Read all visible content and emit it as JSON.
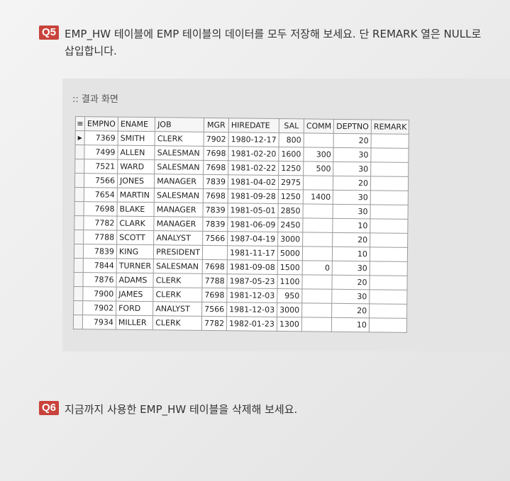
{
  "q5": {
    "badge": "Q5",
    "line1": "EMP_HW 테이블에 EMP 테이블의 데이터를 모두 저장해 보세요. 단 REMARK 열은 NULL로",
    "line2": "삽입합니다."
  },
  "result": {
    "label": ":: 결과 화면",
    "columns": [
      "EMPNO",
      "ENAME",
      "JOB",
      "MGR",
      "HIREDATE",
      "SAL",
      "COMM",
      "DEPTNO",
      "REMARK"
    ],
    "rows": [
      [
        "7369",
        "SMITH",
        "CLERK",
        "7902",
        "1980-12-17",
        "800",
        "",
        "20",
        ""
      ],
      [
        "7499",
        "ALLEN",
        "SALESMAN",
        "7698",
        "1981-02-20",
        "1600",
        "300",
        "30",
        ""
      ],
      [
        "7521",
        "WARD",
        "SALESMAN",
        "7698",
        "1981-02-22",
        "1250",
        "500",
        "30",
        ""
      ],
      [
        "7566",
        "JONES",
        "MANAGER",
        "7839",
        "1981-04-02",
        "2975",
        "",
        "20",
        ""
      ],
      [
        "7654",
        "MARTIN",
        "SALESMAN",
        "7698",
        "1981-09-28",
        "1250",
        "1400",
        "30",
        ""
      ],
      [
        "7698",
        "BLAKE",
        "MANAGER",
        "7839",
        "1981-05-01",
        "2850",
        "",
        "30",
        ""
      ],
      [
        "7782",
        "CLARK",
        "MANAGER",
        "7839",
        "1981-06-09",
        "2450",
        "",
        "10",
        ""
      ],
      [
        "7788",
        "SCOTT",
        "ANALYST",
        "7566",
        "1987-04-19",
        "3000",
        "",
        "20",
        ""
      ],
      [
        "7839",
        "KING",
        "PRESIDENT",
        "",
        "1981-11-17",
        "5000",
        "",
        "10",
        ""
      ],
      [
        "7844",
        "TURNER",
        "SALESMAN",
        "7698",
        "1981-09-08",
        "1500",
        "0",
        "30",
        ""
      ],
      [
        "7876",
        "ADAMS",
        "CLERK",
        "7788",
        "1987-05-23",
        "1100",
        "",
        "20",
        ""
      ],
      [
        "7900",
        "JAMES",
        "CLERK",
        "7698",
        "1981-12-03",
        "950",
        "",
        "30",
        ""
      ],
      [
        "7902",
        "FORD",
        "ANALYST",
        "7566",
        "1981-12-03",
        "3000",
        "",
        "20",
        ""
      ],
      [
        "7934",
        "MILLER",
        "CLERK",
        "7782",
        "1982-01-23",
        "1300",
        "",
        "10",
        ""
      ]
    ]
  },
  "q6": {
    "badge": "Q6",
    "line1": "지금까지 사용한 EMP_HW 테이블을 삭제해 보세요."
  },
  "colors": {
    "badge": "#c8433b"
  }
}
